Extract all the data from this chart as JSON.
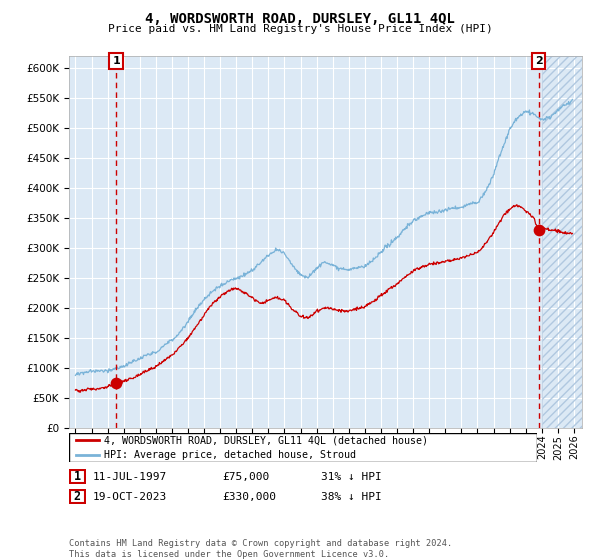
{
  "title": "4, WORDSWORTH ROAD, DURSLEY, GL11 4QL",
  "subtitle": "Price paid vs. HM Land Registry's House Price Index (HPI)",
  "ytick_values": [
    0,
    50000,
    100000,
    150000,
    200000,
    250000,
    300000,
    350000,
    400000,
    450000,
    500000,
    550000,
    600000
  ],
  "x_start_year": 1995,
  "x_end_year": 2026,
  "legend_line1": "4, WORDSWORTH ROAD, DURSLEY, GL11 4QL (detached house)",
  "legend_line2": "HPI: Average price, detached house, Stroud",
  "sale1_date": "11-JUL-1997",
  "sale1_price": "£75,000",
  "sale1_hpi": "31% ↓ HPI",
  "sale1_year": 1997.53,
  "sale1_value": 75000,
  "sale2_date": "19-OCT-2023",
  "sale2_price": "£330,000",
  "sale2_hpi": "38% ↓ HPI",
  "sale2_year": 2023.8,
  "sale2_value": 330000,
  "background_color": "#dce9f5",
  "line_color_hpi": "#7ab3d8",
  "line_color_sale": "#cc0000",
  "dot_color": "#cc0000",
  "dashed_line_color": "#cc0000",
  "grid_color": "#ffffff",
  "hatch_color": "#c8d8e8",
  "footer_text": "Contains HM Land Registry data © Crown copyright and database right 2024.\nThis data is licensed under the Open Government Licence v3.0."
}
